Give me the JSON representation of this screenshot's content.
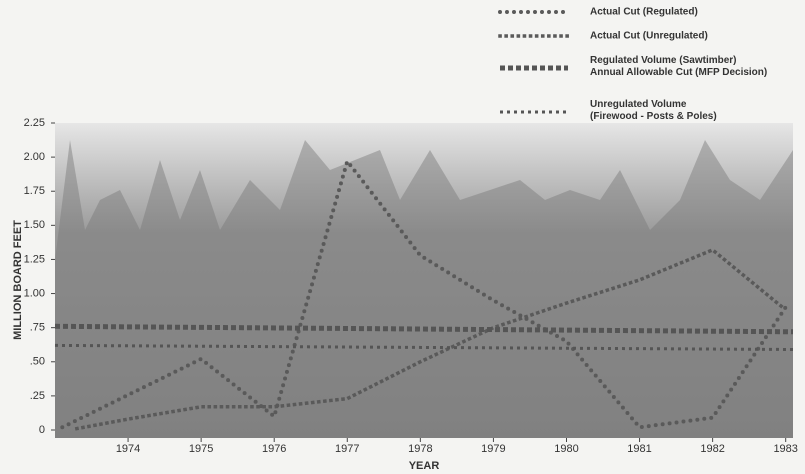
{
  "chart_data": {
    "type": "line",
    "y_label": "MILLION BOARD FEET",
    "x_label": "YEAR",
    "xlim": [
      1973,
      1983.1
    ],
    "xticks": [
      1974,
      1975,
      1976,
      1977,
      1978,
      1979,
      1980,
      1981,
      1982,
      1983
    ],
    "ylim": [
      0,
      2.25
    ],
    "yticks": [
      0,
      {
        "value": 0.25,
        "label": ".25"
      },
      {
        "value": 0.5,
        "label": ".50"
      },
      {
        "value": 0.75,
        "label": ".75"
      },
      {
        "value": 1,
        "label": "1.00"
      },
      1.25,
      {
        "value": 1.5,
        "label": "1.50"
      },
      1.75,
      {
        "value": 2,
        "label": "2.00"
      },
      2.25
    ],
    "series": [
      {
        "name": "Actual Cut (Regulated)",
        "color": "#5a5a5a",
        "style": "dots",
        "x": [
          1973.1,
          1975,
          1976,
          1977,
          1978,
          1979,
          1980,
          1981,
          1982,
          1983
        ],
        "values": [
          0.02,
          0.52,
          0.1,
          1.97,
          1.28,
          0.95,
          0.65,
          0.02,
          0.09,
          0.9
        ]
      },
      {
        "name": "Actual Cut (Unregulated)",
        "color": "#5a5a5a",
        "style": "diamonds",
        "x": [
          1973.3,
          1974,
          1975,
          1976,
          1977,
          1978,
          1979,
          1980,
          1981,
          1982,
          1983
        ],
        "values": [
          0.01,
          0.08,
          0.17,
          0.17,
          0.23,
          0.5,
          0.75,
          0.93,
          1.1,
          1.32,
          0.88
        ]
      },
      {
        "name": "Regulated Volume (Sawtimber)\nAnnual Allowable Cut (MFP Decision)",
        "color": "#555555",
        "style": "squares",
        "x": [
          1973,
          1983.1
        ],
        "values": [
          0.76,
          0.72
        ]
      },
      {
        "name": "Unregulated Volume\n(Firewood - Posts & Poles)",
        "color": "#555555",
        "style": "stars",
        "x": [
          1973,
          1983.1
        ],
        "values": [
          0.62,
          0.59
        ]
      }
    ]
  }
}
